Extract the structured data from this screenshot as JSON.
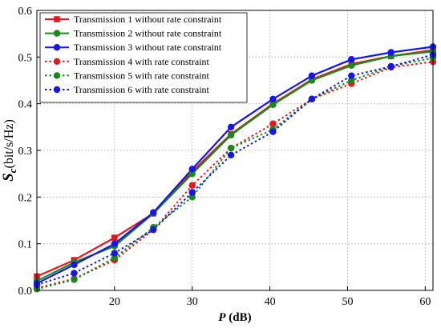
{
  "chart_data": {
    "type": "line",
    "title": "",
    "xlabel": {
      "main": "P",
      "unit": " (dB)"
    },
    "ylabel": {
      "main": "S",
      "sub": "c",
      "unit": "(bit/s/Hz)"
    },
    "xlim": [
      10,
      61
    ],
    "ylim": [
      0,
      0.6
    ],
    "xticks": [
      20,
      30,
      40,
      50,
      60
    ],
    "yticks": [
      0.0,
      0.1,
      0.2,
      0.3,
      0.4,
      0.5,
      0.6
    ],
    "ytick_labels": [
      "0.0",
      "0.1",
      "0.2",
      "0.3",
      "0.4",
      "0.5",
      "0.6"
    ],
    "grid": true,
    "legend_position": "top-left",
    "x": [
      10,
      14.8,
      20,
      25,
      30,
      35,
      40.4,
      45.4,
      50.5,
      55.6,
      61
    ],
    "series": [
      {
        "name": "Transmission 1 without rate constraint",
        "color": "#e8161b",
        "marker": "square",
        "dashed": false,
        "values": [
          0.03,
          0.065,
          0.113,
          0.165,
          0.255,
          0.335,
          0.4,
          0.452,
          0.485,
          0.502,
          0.515
        ]
      },
      {
        "name": "Transmission 2 without rate constraint",
        "color": "#188a1a",
        "marker": "circle",
        "dashed": false,
        "values": [
          0.02,
          0.06,
          0.095,
          0.165,
          0.25,
          0.333,
          0.398,
          0.45,
          0.482,
          0.502,
          0.512
        ]
      },
      {
        "name": "Transmission 3 without rate constraint",
        "color": "#1515ee",
        "marker": "circle",
        "dashed": false,
        "values": [
          0.015,
          0.055,
          0.1,
          0.167,
          0.26,
          0.35,
          0.41,
          0.46,
          0.495,
          0.51,
          0.522
        ]
      },
      {
        "name": "Transmission 4 with rate constraint",
        "color": "#e8161b",
        "marker": "circle",
        "dashed": true,
        "values": [
          0.005,
          0.025,
          0.065,
          0.13,
          0.225,
          0.305,
          0.357,
          0.41,
          0.443,
          0.478,
          0.49
        ]
      },
      {
        "name": "Transmission 5 with rate constraint",
        "color": "#188a1a",
        "marker": "circle",
        "dashed": true,
        "values": [
          0.003,
          0.023,
          0.07,
          0.135,
          0.2,
          0.305,
          0.345,
          0.41,
          0.45,
          0.48,
          0.498
        ]
      },
      {
        "name": "Transmission 6 with rate constraint",
        "color": "#1515ee",
        "marker": "circle",
        "dashed": true,
        "values": [
          0.012,
          0.037,
          0.08,
          0.13,
          0.21,
          0.29,
          0.34,
          0.41,
          0.46,
          0.48,
          0.505
        ]
      }
    ]
  }
}
